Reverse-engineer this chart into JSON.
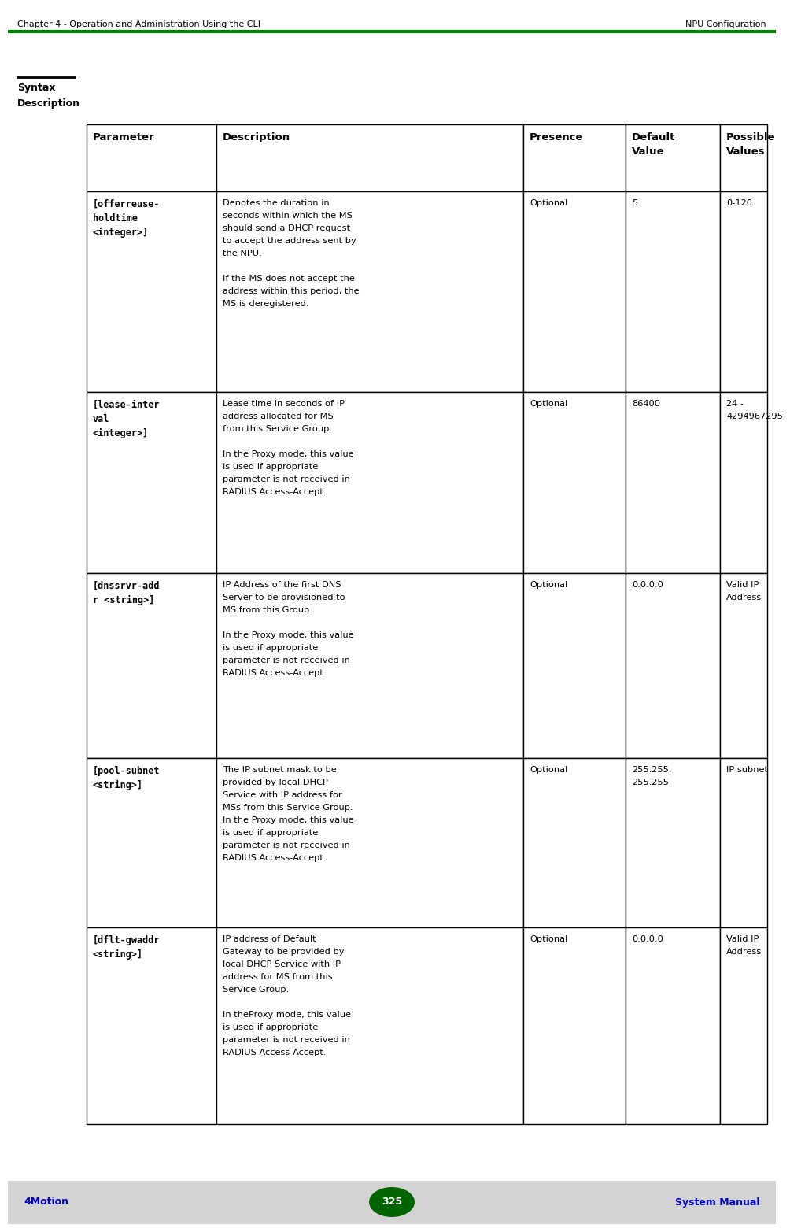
{
  "header_text_left": "Chapter 4 - Operation and Administration Using the CLI",
  "header_text_right": "NPU Configuration",
  "header_line_color": "#008000",
  "footer_bg_color": "#d3d3d3",
  "footer_left": "4Motion",
  "footer_center": "325",
  "footer_right": "System Manual",
  "footer_text_color": "#0000cc",
  "footer_badge_color": "#006400",
  "col_headers": [
    "Parameter",
    "Description",
    "Presence",
    "Default\nValue",
    "Possible\nValues"
  ],
  "rows": [
    {
      "param": "[offerreuse-\nholdtime\n<integer>]",
      "desc": "Denotes the duration in\nseconds within which the MS\nshould send a DHCP request\nto accept the address sent by\nthe NPU.\n\nIf the MS does not accept the\naddress within this period, the\nMS is deregistered.",
      "presence": "Optional",
      "default": "5",
      "possible": "0-120"
    },
    {
      "param": "[lease-inter\nval\n<integer>]",
      "desc": "Lease time in seconds of IP\naddress allocated for MS\nfrom this Service Group.\n\nIn the Proxy mode, this value\nis used if appropriate\nparameter is not received in\nRADIUS Access-Accept.",
      "presence": "Optional",
      "default": "86400",
      "possible": "24 -\n4294967295"
    },
    {
      "param": "[dnssrvr-add\nr <string>]",
      "desc": "IP Address of the first DNS\nServer to be provisioned to\nMS from this Group.\n\nIn the Proxy mode, this value\nis used if appropriate\nparameter is not received in\nRADIUS Access-Accept",
      "presence": "Optional",
      "default": "0.0.0.0",
      "possible": "Valid IP\nAddress"
    },
    {
      "param": "[pool-subnet\n<string>]",
      "desc": "The IP subnet mask to be\nprovided by local DHCP\nService with IP address for\nMSs from this Service Group.\nIn the Proxy mode, this value\nis used if appropriate\nparameter is not received in\nRADIUS Access-Accept.",
      "presence": "Optional",
      "default": "255.255.\n255.255",
      "possible": "IP subnet"
    },
    {
      "param": "[dflt-gwaddr\n<string>]",
      "desc": "IP address of Default\nGateway to be provided by\nlocal DHCP Service with IP\naddress for MS from this\nService Group.\n\nIn theProxy mode, this value\nis used if appropriate\nparameter is not received in\nRADIUS Access-Accept.",
      "presence": "Optional",
      "default": "0.0.0.0",
      "possible": "Valid IP\nAddress"
    }
  ],
  "bg_color": "#ffffff"
}
